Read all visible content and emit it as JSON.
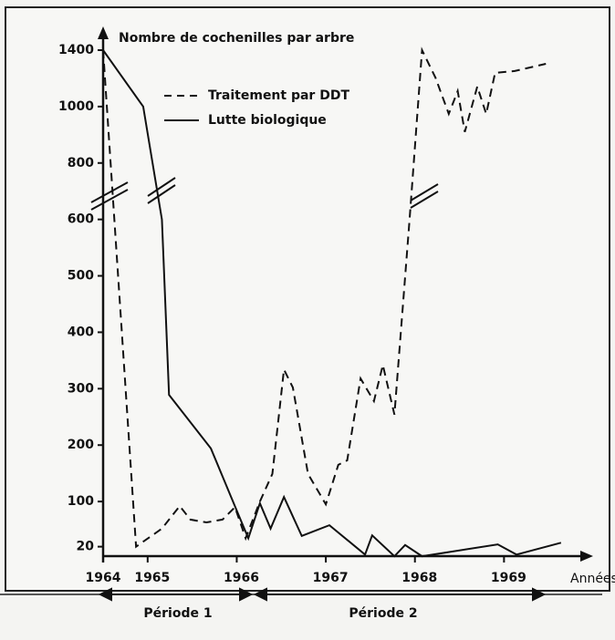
{
  "chart_data": {
    "type": "line",
    "y_label": "Nombre de cochenilles par arbre",
    "x_label": "Années",
    "periods": [
      "Période 1",
      "Période 2"
    ],
    "xlim": [
      1964.5,
      1970.0
    ],
    "xticks": [
      {
        "value": 1964.5,
        "label": "1964"
      },
      1965,
      1966,
      1967,
      1968,
      1969
    ],
    "ylim": [
      0,
      1400
    ],
    "yticks": [
      20,
      100,
      200,
      300,
      400,
      500,
      600,
      800,
      1000,
      1400
    ],
    "ybreak": 600,
    "series": [
      {
        "name": "Traitement par DDT",
        "color": "#111",
        "dashed": true,
        "x": [
          1964.5,
          1964.87,
          1965.16,
          1965.36,
          1965.48,
          1965.66,
          1965.84,
          1965.98,
          1966.1,
          1966.26,
          1966.4,
          1966.53,
          1966.63,
          1966.8,
          1967.0,
          1967.14,
          1967.24,
          1967.39,
          1967.54,
          1967.64,
          1967.77,
          1967.94,
          1968.08,
          1968.23,
          1968.38,
          1968.48,
          1968.56,
          1968.7,
          1968.8,
          1968.9,
          1969.12,
          1969.47
        ],
        "values": [
          1400,
          20,
          52,
          92,
          68,
          63,
          68,
          90,
          35,
          100,
          149,
          334,
          302,
          149,
          95,
          165,
          173,
          318,
          278,
          342,
          254,
          600,
          1400,
          1206,
          974,
          1110,
          910,
          1142,
          974,
          1239,
          1252,
          1303
        ]
      },
      {
        "name": "Lutte biologique",
        "color": "#111",
        "dashed": false,
        "x": [
          1964.5,
          1964.95,
          1965.16,
          1965.24,
          1965.71,
          1966.0,
          1966.13,
          1966.26,
          1966.38,
          1966.53,
          1966.73,
          1967.04,
          1967.44,
          1967.52,
          1967.77,
          1967.89,
          1968.08,
          1968.93,
          1969.14,
          1969.64
        ],
        "values": [
          1400,
          1000,
          600,
          289,
          194,
          84,
          35,
          97,
          52,
          108,
          39,
          58,
          6,
          40,
          3,
          23,
          3,
          24,
          6,
          27
        ]
      }
    ]
  }
}
